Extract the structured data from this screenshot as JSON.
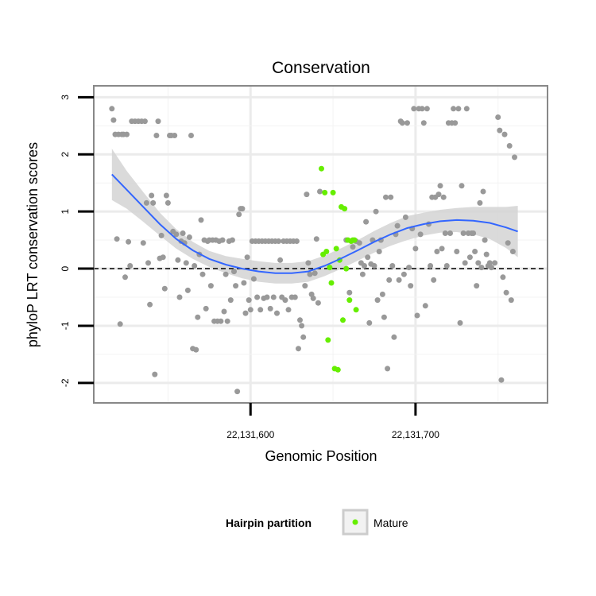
{
  "chart_data": {
    "type": "scatter",
    "title": "Conservation",
    "xlabel": "Genomic Position",
    "ylabel": "phyloP LRT conservation scores",
    "xlim": [
      22131505,
      22131780
    ],
    "ylim": [
      -2.35,
      3.2
    ],
    "x_ticks": [
      22131600,
      22131700
    ],
    "x_tick_labels": [
      "22,131,600",
      "22,131,700"
    ],
    "y_ticks": [
      -2,
      -1,
      0,
      1,
      2,
      3
    ],
    "y_tick_labels": [
      "-2",
      "-1",
      "0",
      "1",
      "2",
      "3"
    ],
    "grid": true,
    "reference_line": {
      "y": 0,
      "style": "dashed"
    },
    "colors": {
      "other_points": "#999999",
      "mature_points": "#66ee00",
      "smooth_line": "#3366ff",
      "ribbon": "#d3d3d3",
      "panel_border": "#888888"
    },
    "legend": {
      "title": "Hairpin partition",
      "position": "bottom",
      "entries": [
        {
          "label": "Mature",
          "color": "#66ee00"
        }
      ]
    },
    "series": [
      {
        "color": "#999999",
        "points": [
          [
            22131516,
            2.8
          ],
          [
            22131517,
            2.6
          ],
          [
            22131518,
            2.35
          ],
          [
            22131519,
            0.52
          ],
          [
            22131520,
            2.35
          ],
          [
            22131521,
            -0.97
          ],
          [
            22131522,
            2.35
          ],
          [
            22131523,
            2.35
          ],
          [
            22131524,
            -0.15
          ],
          [
            22131525,
            2.35
          ],
          [
            22131526,
            0.47
          ],
          [
            22131527,
            0.05
          ],
          [
            22131528,
            2.58
          ],
          [
            22131530,
            2.58
          ],
          [
            22131532,
            2.58
          ],
          [
            22131534,
            2.58
          ],
          [
            22131535,
            0.45
          ],
          [
            22131536,
            2.58
          ],
          [
            22131537,
            1.15
          ],
          [
            22131538,
            0.1
          ],
          [
            22131539,
            -0.63
          ],
          [
            22131540,
            1.28
          ],
          [
            22131541,
            1.15
          ],
          [
            22131542,
            -1.85
          ],
          [
            22131543,
            2.33
          ],
          [
            22131544,
            2.58
          ],
          [
            22131545,
            0.18
          ],
          [
            22131546,
            0.58
          ],
          [
            22131547,
            0.2
          ],
          [
            22131548,
            -0.35
          ],
          [
            22131549,
            1.28
          ],
          [
            22131550,
            1.15
          ],
          [
            22131551,
            2.33
          ],
          [
            22131552,
            2.33
          ],
          [
            22131553,
            0.65
          ],
          [
            22131554,
            2.33
          ],
          [
            22131555,
            0.6
          ],
          [
            22131556,
            0.15
          ],
          [
            22131557,
            -0.5
          ],
          [
            22131558,
            0.48
          ],
          [
            22131559,
            0.62
          ],
          [
            22131560,
            0.45
          ],
          [
            22131561,
            0.1
          ],
          [
            22131562,
            -0.38
          ],
          [
            22131563,
            0.55
          ],
          [
            22131564,
            2.33
          ],
          [
            22131565,
            -1.4
          ],
          [
            22131566,
            0.05
          ],
          [
            22131567,
            -1.42
          ],
          [
            22131568,
            -0.85
          ],
          [
            22131569,
            0.25
          ],
          [
            22131570,
            0.85
          ],
          [
            22131571,
            -0.1
          ],
          [
            22131572,
            0.5
          ],
          [
            22131573,
            -0.7
          ],
          [
            22131574,
            0.48
          ],
          [
            22131575,
            0.5
          ],
          [
            22131576,
            -0.3
          ],
          [
            22131577,
            0.5
          ],
          [
            22131578,
            -0.92
          ],
          [
            22131579,
            0.5
          ],
          [
            22131580,
            -0.92
          ],
          [
            22131581,
            0.48
          ],
          [
            22131582,
            -0.92
          ],
          [
            22131583,
            0.5
          ],
          [
            22131584,
            -0.75
          ],
          [
            22131585,
            -0.1
          ],
          [
            22131586,
            -0.92
          ],
          [
            22131587,
            0.48
          ],
          [
            22131588,
            -0.55
          ],
          [
            22131589,
            0.5
          ],
          [
            22131590,
            -0.05
          ],
          [
            22131591,
            -0.3
          ],
          [
            22131592,
            -2.15
          ],
          [
            22131593,
            0.95
          ],
          [
            22131594,
            1.05
          ],
          [
            22131595,
            1.05
          ],
          [
            22131596,
            -0.25
          ],
          [
            22131597,
            -0.78
          ],
          [
            22131598,
            0.2
          ],
          [
            22131599,
            -0.55
          ],
          [
            22131600,
            -0.72
          ],
          [
            22131601,
            0.48
          ],
          [
            22131602,
            -0.18
          ],
          [
            22131603,
            0.48
          ],
          [
            22131604,
            -0.5
          ],
          [
            22131605,
            0.48
          ],
          [
            22131606,
            -0.72
          ],
          [
            22131607,
            0.48
          ],
          [
            22131608,
            -0.52
          ],
          [
            22131609,
            0.48
          ],
          [
            22131610,
            -0.5
          ],
          [
            22131611,
            0.48
          ],
          [
            22131612,
            -0.7
          ],
          [
            22131613,
            0.48
          ],
          [
            22131614,
            -0.5
          ],
          [
            22131615,
            0.48
          ],
          [
            22131616,
            -0.78
          ],
          [
            22131617,
            0.48
          ],
          [
            22131618,
            0.15
          ],
          [
            22131619,
            -0.5
          ],
          [
            22131620,
            0.48
          ],
          [
            22131621,
            -0.55
          ],
          [
            22131622,
            0.48
          ],
          [
            22131623,
            -0.72
          ],
          [
            22131624,
            0.48
          ],
          [
            22131625,
            -0.5
          ],
          [
            22131626,
            0.48
          ],
          [
            22131627,
            -0.5
          ],
          [
            22131628,
            0.48
          ],
          [
            22131629,
            -1.4
          ],
          [
            22131630,
            -0.9
          ],
          [
            22131631,
            -1.0
          ],
          [
            22131632,
            -1.2
          ],
          [
            22131633,
            -0.3
          ],
          [
            22131634,
            1.3
          ],
          [
            22131635,
            0.1
          ],
          [
            22131636,
            -0.1
          ],
          [
            22131637,
            -0.45
          ],
          [
            22131638,
            -0.52
          ],
          [
            22131639,
            -0.08
          ],
          [
            22131640,
            0.52
          ],
          [
            22131641,
            -0.6
          ],
          [
            22131642,
            1.35
          ],
          [
            22131658,
            0.5
          ],
          [
            22131660,
            -0.42
          ],
          [
            22131662,
            0.38
          ],
          [
            22131664,
            0.48
          ],
          [
            22131666,
            0.45
          ],
          [
            22131667,
            0.1
          ],
          [
            22131668,
            -0.1
          ],
          [
            22131669,
            0.05
          ],
          [
            22131670,
            0.82
          ],
          [
            22131671,
            0.2
          ],
          [
            22131672,
            -0.95
          ],
          [
            22131673,
            0.08
          ],
          [
            22131674,
            0.5
          ],
          [
            22131675,
            0.05
          ],
          [
            22131676,
            1.0
          ],
          [
            22131677,
            -0.55
          ],
          [
            22131678,
            0.3
          ],
          [
            22131679,
            0.5
          ],
          [
            22131680,
            -0.45
          ],
          [
            22131681,
            -0.85
          ],
          [
            22131682,
            1.25
          ],
          [
            22131683,
            -1.75
          ],
          [
            22131684,
            -0.2
          ],
          [
            22131685,
            1.25
          ],
          [
            22131686,
            0.05
          ],
          [
            22131687,
            -1.2
          ],
          [
            22131688,
            0.6
          ],
          [
            22131689,
            0.75
          ],
          [
            22131690,
            -0.2
          ],
          [
            22131691,
            2.58
          ],
          [
            22131692,
            2.55
          ],
          [
            22131693,
            -0.1
          ],
          [
            22131694,
            0.9
          ],
          [
            22131695,
            2.55
          ],
          [
            22131696,
            0.02
          ],
          [
            22131697,
            -0.3
          ],
          [
            22131698,
            0.7
          ],
          [
            22131699,
            2.8
          ],
          [
            22131700,
            0.35
          ],
          [
            22131701,
            -0.82
          ],
          [
            22131702,
            2.8
          ],
          [
            22131703,
            0.6
          ],
          [
            22131704,
            2.8
          ],
          [
            22131705,
            2.55
          ],
          [
            22131706,
            -0.65
          ],
          [
            22131707,
            2.8
          ],
          [
            22131708,
            0.78
          ],
          [
            22131709,
            0.05
          ],
          [
            22131710,
            1.25
          ],
          [
            22131711,
            -0.2
          ],
          [
            22131712,
            1.25
          ],
          [
            22131713,
            0.3
          ],
          [
            22131714,
            1.3
          ],
          [
            22131715,
            1.45
          ],
          [
            22131716,
            0.35
          ],
          [
            22131717,
            1.25
          ],
          [
            22131718,
            0.62
          ],
          [
            22131719,
            0.05
          ],
          [
            22131720,
            2.55
          ],
          [
            22131721,
            0.62
          ],
          [
            22131722,
            2.55
          ],
          [
            22131723,
            2.8
          ],
          [
            22131724,
            2.55
          ],
          [
            22131725,
            0.3
          ],
          [
            22131726,
            2.8
          ],
          [
            22131727,
            -0.95
          ],
          [
            22131728,
            1.45
          ],
          [
            22131729,
            0.62
          ],
          [
            22131730,
            0.1
          ],
          [
            22131731,
            2.8
          ],
          [
            22131732,
            0.62
          ],
          [
            22131733,
            0.2
          ],
          [
            22131734,
            0.62
          ],
          [
            22131735,
            0.62
          ],
          [
            22131736,
            0.3
          ],
          [
            22131737,
            -0.3
          ],
          [
            22131738,
            0.1
          ],
          [
            22131739,
            1.15
          ],
          [
            22131740,
            0.02
          ],
          [
            22131741,
            1.35
          ],
          [
            22131742,
            0.5
          ],
          [
            22131743,
            0.25
          ],
          [
            22131744,
            0.05
          ],
          [
            22131745,
            0.1
          ],
          [
            22131746,
            0.02
          ],
          [
            22131748,
            0.1
          ],
          [
            22131750,
            2.65
          ],
          [
            22131751,
            2.42
          ],
          [
            22131752,
            -1.95
          ],
          [
            22131753,
            -0.15
          ],
          [
            22131754,
            2.35
          ],
          [
            22131755,
            -0.42
          ],
          [
            22131756,
            0.45
          ],
          [
            22131757,
            2.15
          ],
          [
            22131758,
            -0.55
          ],
          [
            22131759,
            0.3
          ],
          [
            22131760,
            1.95
          ]
        ]
      },
      {
        "name": "Mature",
        "color": "#66ee00",
        "points": [
          [
            22131643,
            1.75
          ],
          [
            22131644,
            0.25
          ],
          [
            22131645,
            1.33
          ],
          [
            22131646,
            0.3
          ],
          [
            22131647,
            -1.25
          ],
          [
            22131648,
            0.02
          ],
          [
            22131649,
            -0.25
          ],
          [
            22131650,
            1.33
          ],
          [
            22131651,
            -1.75
          ],
          [
            22131652,
            0.35
          ],
          [
            22131653,
            -1.77
          ],
          [
            22131654,
            0.15
          ],
          [
            22131655,
            1.08
          ],
          [
            22131656,
            -0.9
          ],
          [
            22131657,
            1.05
          ],
          [
            22131658,
            0.0
          ],
          [
            22131659,
            0.5
          ],
          [
            22131660,
            -0.55
          ],
          [
            22131661,
            0.48
          ],
          [
            22131662,
            0.5
          ],
          [
            22131663,
            0.5
          ],
          [
            22131664,
            -0.72
          ]
        ]
      }
    ],
    "smooth": {
      "x": [
        22131516,
        22131525,
        22131535,
        22131545,
        22131555,
        22131565,
        22131575,
        22131585,
        22131595,
        22131605,
        22131615,
        22131625,
        22131635,
        22131645,
        22131655,
        22131665,
        22131675,
        22131685,
        22131695,
        22131705,
        22131715,
        22131725,
        22131735,
        22131745,
        22131755,
        22131762
      ],
      "y": [
        1.65,
        1.38,
        1.08,
        0.78,
        0.52,
        0.32,
        0.17,
        0.07,
        0.0,
        -0.05,
        -0.08,
        -0.08,
        -0.05,
        0.05,
        0.18,
        0.32,
        0.47,
        0.6,
        0.71,
        0.78,
        0.83,
        0.85,
        0.84,
        0.8,
        0.72,
        0.65
      ],
      "lower": [
        1.2,
        1.05,
        0.82,
        0.58,
        0.35,
        0.17,
        0.03,
        -0.08,
        -0.17,
        -0.23,
        -0.26,
        -0.26,
        -0.23,
        -0.13,
        0.0,
        0.14,
        0.28,
        0.4,
        0.5,
        0.58,
        0.63,
        0.64,
        0.6,
        0.52,
        0.36,
        0.2
      ],
      "upper": [
        2.1,
        1.71,
        1.34,
        0.98,
        0.69,
        0.47,
        0.31,
        0.22,
        0.17,
        0.13,
        0.1,
        0.1,
        0.13,
        0.23,
        0.36,
        0.5,
        0.66,
        0.8,
        0.92,
        0.98,
        1.03,
        1.06,
        1.08,
        1.08,
        1.08,
        1.1
      ]
    }
  }
}
